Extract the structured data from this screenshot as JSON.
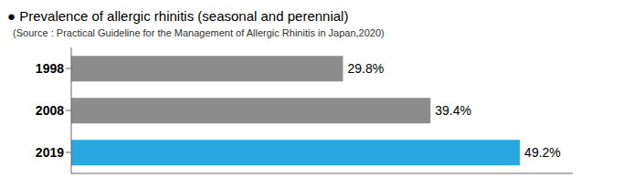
{
  "chart_data": {
    "type": "bar",
    "orientation": "horizontal",
    "title": "● Prevalence of allergic rhinitis (seasonal and perennial)",
    "subtitle": "  (Source : Practical Guideline for the Management of Allergic Rhinitis in Japan,2020)",
    "categories": [
      "1998",
      "2008",
      "2019"
    ],
    "values": [
      29.8,
      39.4,
      49.2
    ],
    "value_labels": [
      "29.8%",
      "39.4%",
      "49.2%"
    ],
    "data_labels": true,
    "colors": [
      "#8c8c8c",
      "#8c8c8c",
      "#29a8e0"
    ],
    "xlim": [
      0,
      55
    ],
    "tick_labels": "y",
    "grid": false
  }
}
